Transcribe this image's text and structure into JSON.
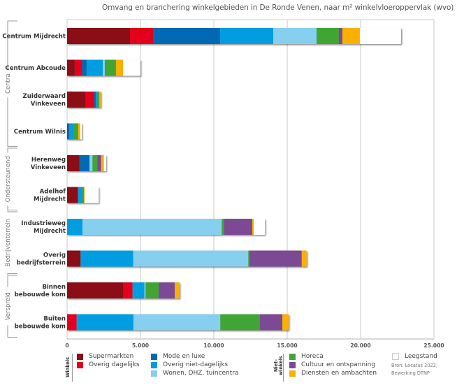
{
  "chart_data": {
    "type": "bar",
    "orientation": "horizontal",
    "stacked": true,
    "title": "Omvang en branchering winkelgebieden in De Ronde Venen, naar m² winkelvloeroppervlak (wvo)",
    "xlabel": "",
    "ylabel": "",
    "xlim": [
      0,
      25000
    ],
    "x_ticks": [
      0,
      5000,
      10000,
      15000,
      20000,
      25000
    ],
    "x_tick_labels": [
      "0",
      "5.000",
      "10.000",
      "15.000",
      "20.000",
      "25.000"
    ],
    "grid": "vertical",
    "categories": [
      "Centrum Mijdrecht",
      "Centrum Abcoude",
      "Zuiderwaard\nVinkeveen",
      "Centrum Wilnis",
      "Herenweg\nVinkeveen",
      "Adelhof\nMijdrecht",
      "Industrieweg\nMijdrecht",
      "Overig\nbedrijfsterrein",
      "Binnen\nbebouwde kom",
      "Buiten\nbebouwde kom"
    ],
    "groups": [
      {
        "label": "Centra",
        "categories": [
          0,
          1,
          2,
          3
        ]
      },
      {
        "label": "Ondersteunend",
        "categories": [
          4,
          5
        ]
      },
      {
        "label": "Bedrijventerrein",
        "categories": [
          6,
          7
        ]
      },
      {
        "label": "Verspreid",
        "categories": [
          8,
          9
        ]
      }
    ],
    "series": [
      {
        "name": "Supermarkten",
        "color": "#8b1014",
        "values": [
          4290,
          520,
          1270,
          0,
          850,
          710,
          0,
          920,
          3810,
          0
        ]
      },
      {
        "name": "Overig dagelijks",
        "color": "#e2001a",
        "values": [
          1600,
          500,
          590,
          70,
          0,
          50,
          0,
          0,
          650,
          650
        ]
      },
      {
        "name": "Mode en luxe",
        "color": "#0069b4",
        "values": [
          4540,
          310,
          100,
          70,
          680,
          0,
          0,
          0,
          0,
          0
        ]
      },
      {
        "name": "Overig niet-dagelijks",
        "color": "#009ee0",
        "values": [
          3620,
          1100,
          140,
          330,
          0,
          290,
          1050,
          3590,
          810,
          3870
        ]
      },
      {
        "name": "Wonen, DHZ, tuincentra",
        "color": "#87cfef",
        "values": [
          2950,
          140,
          0,
          0,
          200,
          0,
          9490,
          7840,
          80,
          5920
        ]
      },
      {
        "name": "Horeca",
        "color": "#3fa535",
        "values": [
          1520,
          760,
          100,
          290,
          330,
          100,
          160,
          80,
          890,
          2690
        ]
      },
      {
        "name": "Cultuur en ontspanning",
        "color": "#7b4a94",
        "values": [
          240,
          0,
          0,
          0,
          260,
          0,
          1920,
          3560,
          1100,
          1540
        ]
      },
      {
        "name": "Diensten en ambachten",
        "color": "#f9b000",
        "values": [
          1190,
          480,
          100,
          140,
          190,
          50,
          100,
          330,
          320,
          430
        ]
      },
      {
        "name": "Leegstand",
        "color": "#ffffff",
        "values": [
          2810,
          1190,
          0,
          100,
          140,
          950,
          760,
          0,
          0,
          0
        ]
      }
    ],
    "legend": {
      "placement": "bottom",
      "groups": [
        {
          "label": "Winkels",
          "items": [
            "Supermarkten",
            "Overig dagelijks",
            "Mode en luxe",
            "Overig niet-dagelijks",
            "Wonen, DHZ, tuincentra"
          ]
        },
        {
          "label": "Niet-winkels",
          "items": [
            "Horeca",
            "Cultuur en ontspanning",
            "Diensten en ambachten"
          ]
        },
        {
          "label": "",
          "items": [
            "Leegstand"
          ]
        }
      ]
    },
    "annotations": [
      "Bron: Locatus 2022;",
      "Bewerking DTNP"
    ]
  },
  "legend": {
    "winkels_label": "Winkels",
    "nietwinkels_label": "Niet-\nwinkels",
    "items": [
      {
        "label": "Supermarkten",
        "color": "#8b1014"
      },
      {
        "label": "Overig dagelijks",
        "color": "#e2001a"
      },
      {
        "label": "Mode en luxe",
        "color": "#0069b4"
      },
      {
        "label": "Overig niet-dagelijks",
        "color": "#009ee0"
      },
      {
        "label": "Wonen, DHZ, tuincentra",
        "color": "#87cfef"
      },
      {
        "label": "Horeca",
        "color": "#3fa535"
      },
      {
        "label": "Cultuur en ontspanning",
        "color": "#7b4a94"
      },
      {
        "label": "Diensten en ambachten",
        "color": "#f9b000"
      },
      {
        "label": "Leegstand",
        "color": "#ffffff"
      }
    ]
  },
  "source": {
    "line1": "Bron: Locatus 2022;",
    "line2": "Bewerking DTNP"
  }
}
